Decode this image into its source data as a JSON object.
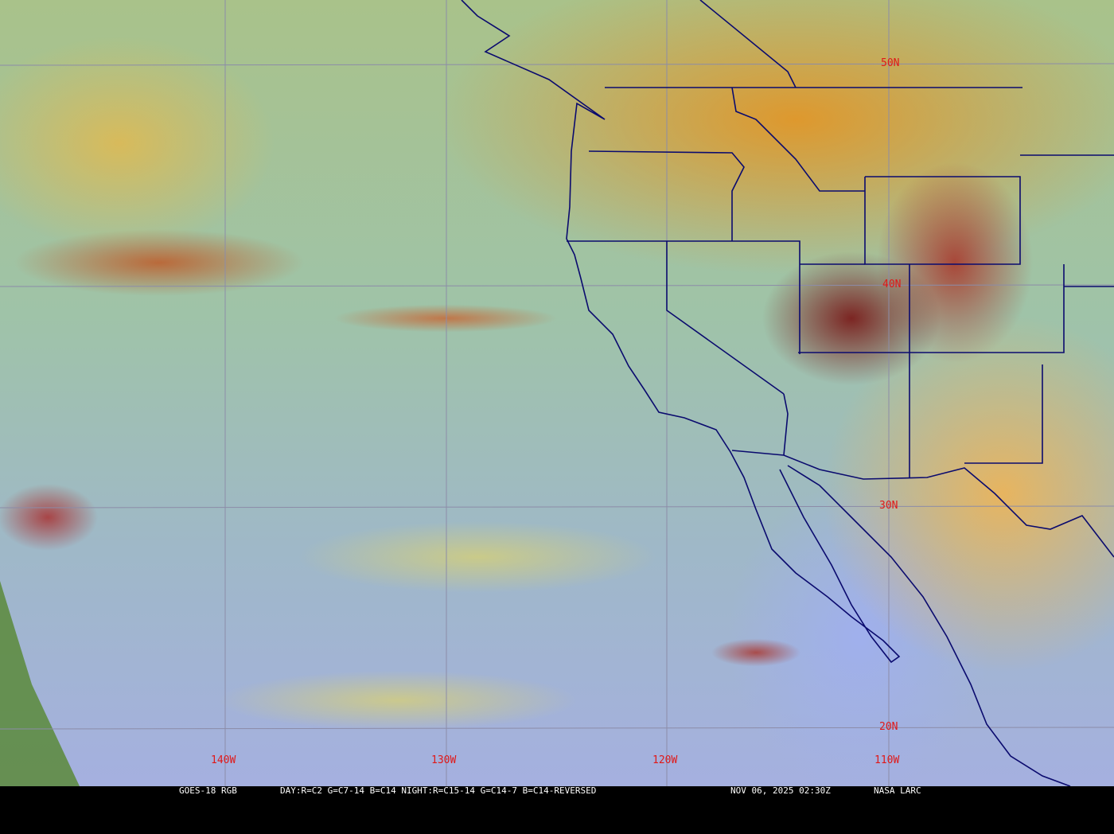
{
  "map": {
    "type": "satellite-rgb-composite",
    "region": "US West Coast and Eastern Pacific",
    "grid": {
      "latitude_labels": [
        "50N",
        "40N",
        "30N",
        "20N"
      ],
      "longitude_labels": [
        "140W",
        "130W",
        "120W",
        "110W"
      ],
      "grid_color": "#8c8ca8",
      "label_color": "#e01818"
    },
    "border_color": "#0a0a6e"
  },
  "caption": {
    "product": "GOES-18 RGB",
    "recipe": "DAY:R=C2 G=C7-14 B=C14 NIGHT:R=C15-14 G=C14-7 B=C14-REVERSED",
    "timestamp": "NOV 06, 2025 02:30Z",
    "source": "NASA LARC"
  }
}
